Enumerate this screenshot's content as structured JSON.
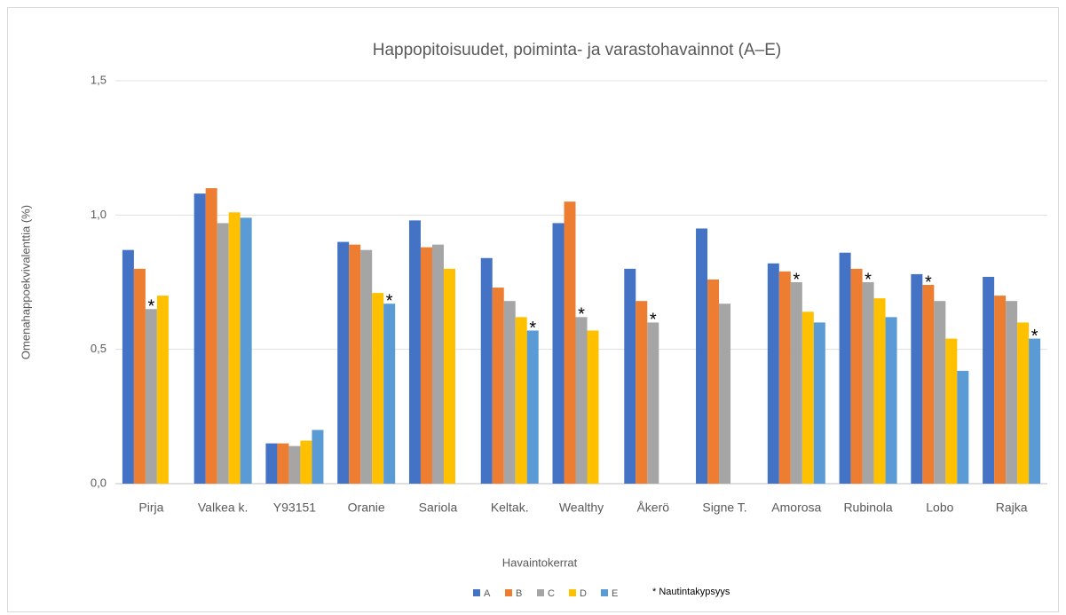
{
  "chart_data": {
    "type": "bar",
    "title": "Happopitoisuudet, poiminta- ja varastohavainnot (A–E)",
    "ylabel": "Omenahappoekvivalenttia (%)",
    "xlabel": "Havaintokerrat",
    "note": "* Nautintakypsyys",
    "categories": [
      "Pirja",
      "Valkea k.",
      "Y93151",
      "Oranie",
      "Sariola",
      "Keltak.",
      "Wealthy",
      "Åkerö",
      "Signe T.",
      "Amorosa",
      "Rubinola",
      "Lobo",
      "Rajka"
    ],
    "series": [
      {
        "name": "A",
        "color": "#4472c4",
        "values": [
          0.87,
          1.08,
          0.15,
          0.9,
          0.98,
          0.84,
          0.97,
          0.8,
          0.95,
          0.82,
          0.86,
          0.78,
          0.77
        ]
      },
      {
        "name": "B",
        "color": "#ed7d31",
        "values": [
          0.8,
          1.1,
          0.15,
          0.89,
          0.88,
          0.73,
          1.05,
          0.68,
          0.76,
          0.79,
          0.8,
          0.74,
          0.7
        ]
      },
      {
        "name": "C",
        "color": "#a5a5a5",
        "values": [
          0.65,
          0.97,
          0.14,
          0.87,
          0.89,
          0.68,
          0.62,
          0.6,
          0.67,
          0.75,
          0.75,
          0.68,
          0.68
        ]
      },
      {
        "name": "D",
        "color": "#ffc000",
        "values": [
          0.7,
          1.01,
          0.16,
          0.71,
          0.8,
          0.62,
          0.57,
          null,
          null,
          0.64,
          0.69,
          0.54,
          0.6
        ]
      },
      {
        "name": "E",
        "color": "#5b9bd5",
        "values": [
          null,
          0.99,
          0.2,
          0.67,
          null,
          0.57,
          null,
          null,
          null,
          0.6,
          0.62,
          0.42,
          0.54
        ]
      }
    ],
    "annotations": [
      {
        "text": "*",
        "category": "Pirja",
        "series": "C"
      },
      {
        "text": "*",
        "category": "Oranie",
        "series": "E"
      },
      {
        "text": "*",
        "category": "Keltak.",
        "series": "E"
      },
      {
        "text": "*",
        "category": "Wealthy",
        "series": "C"
      },
      {
        "text": "*",
        "category": "Åkerö",
        "series": "C"
      },
      {
        "text": "*",
        "category": "Amorosa",
        "series": "C"
      },
      {
        "text": "*",
        "category": "Rubinola",
        "series": "C"
      },
      {
        "text": "*",
        "category": "Lobo",
        "series": "B"
      },
      {
        "text": "*",
        "category": "Rajka",
        "series": "E"
      }
    ],
    "ylim": [
      0,
      1.5
    ],
    "yticks": [
      {
        "value": 0,
        "label": "0,0"
      },
      {
        "value": 0.5,
        "label": "0,5"
      },
      {
        "value": 1.0,
        "label": "1,0"
      },
      {
        "value": 1.5,
        "label": "1,5"
      }
    ],
    "grid": true,
    "legend": "bottom"
  }
}
